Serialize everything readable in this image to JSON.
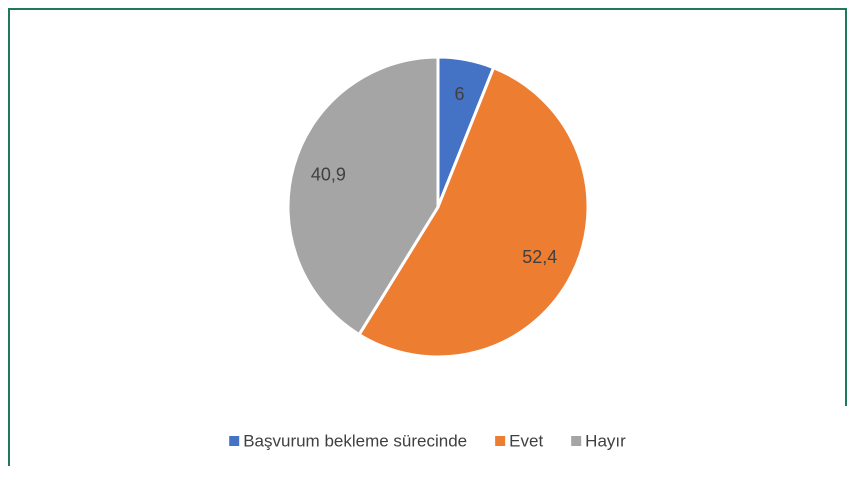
{
  "chart_data": {
    "type": "pie",
    "categories": [
      "Başvurum bekleme sürecinde",
      "Evet",
      "Hayır"
    ],
    "values": [
      6,
      52.4,
      40.9
    ],
    "value_labels": [
      "6",
      "52,4",
      "40,9"
    ],
    "colors": [
      "#4472c4",
      "#ed7d31",
      "#a5a5a5"
    ],
    "legend": "bottom"
  }
}
